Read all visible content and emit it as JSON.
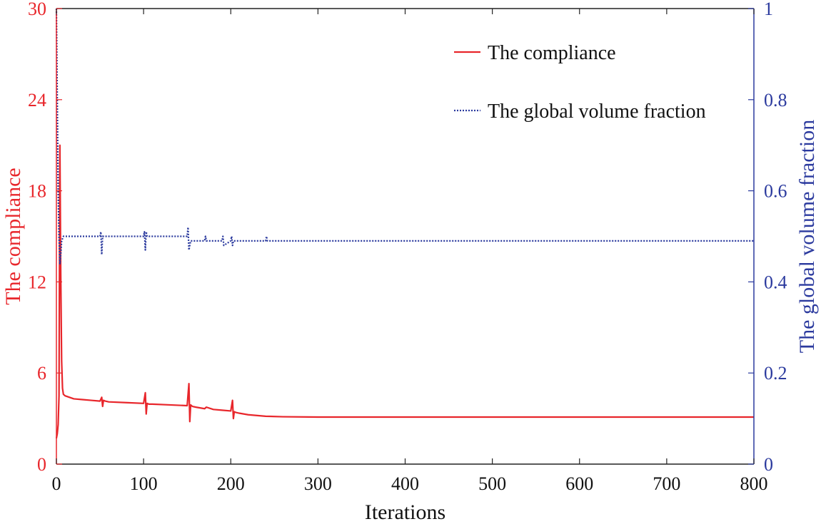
{
  "chart_data": {
    "type": "line",
    "xlabel": "Iterations",
    "ylabel_left": "The compliance",
    "ylabel_right": "The global volume fraction",
    "xlim": [
      0,
      800
    ],
    "ylim_left": [
      0,
      30
    ],
    "ylim_right": [
      0,
      1
    ],
    "x_ticks": [
      0,
      100,
      200,
      300,
      400,
      500,
      600,
      700,
      800
    ],
    "y_ticks_left": [
      0,
      6,
      12,
      18,
      24,
      30
    ],
    "y_ticks_right": [
      "0",
      "0.2",
      "0.4",
      "0.6",
      "0.8",
      "1"
    ],
    "legend_position": "top-right",
    "colors": {
      "left_axis": "#e8262b",
      "right_axis": "#2b3a9e",
      "frame": "#222222"
    },
    "series": [
      {
        "name": "The compliance",
        "axis": "left",
        "style": "solid",
        "color": "#e8262b",
        "x": [
          0,
          1,
          2,
          3,
          4,
          5,
          6,
          7,
          8,
          10,
          15,
          20,
          30,
          40,
          50,
          52,
          53,
          54,
          56,
          60,
          80,
          100,
          102,
          103,
          104,
          106,
          110,
          130,
          150,
          152,
          153,
          154,
          156,
          160,
          170,
          172,
          180,
          190,
          200,
          202,
          203,
          204,
          206,
          210,
          220,
          240,
          260,
          300,
          400,
          500,
          600,
          700,
          800
        ],
        "y": [
          1.7,
          2.0,
          2.6,
          4.5,
          21.0,
          12.5,
          6.8,
          5.0,
          4.6,
          4.5,
          4.4,
          4.3,
          4.25,
          4.2,
          4.15,
          4.4,
          3.8,
          4.2,
          4.15,
          4.1,
          4.05,
          4.0,
          4.7,
          3.3,
          4.0,
          3.95,
          3.95,
          3.9,
          3.85,
          5.3,
          2.8,
          3.9,
          3.8,
          3.75,
          3.65,
          3.75,
          3.6,
          3.55,
          3.5,
          4.2,
          3.0,
          3.45,
          3.4,
          3.35,
          3.25,
          3.15,
          3.12,
          3.1,
          3.1,
          3.1,
          3.1,
          3.1,
          3.1
        ]
      },
      {
        "name": "The global volume fraction",
        "axis": "right",
        "style": "dotted",
        "color": "#2b3a9e",
        "x": [
          0,
          1,
          2,
          3,
          4,
          5,
          6,
          8,
          10,
          20,
          50,
          51,
          52,
          53,
          54,
          56,
          100,
          101,
          102,
          103,
          104,
          106,
          150,
          151,
          152,
          153,
          154,
          155,
          158,
          170,
          171,
          172,
          190,
          191,
          192,
          200,
          201,
          202,
          203,
          204,
          210,
          240,
          241,
          242,
          300,
          400,
          500,
          600,
          700,
          800
        ],
        "y": [
          1.0,
          0.8,
          0.6,
          0.5,
          0.44,
          0.46,
          0.49,
          0.5,
          0.5,
          0.5,
          0.5,
          0.51,
          0.46,
          0.5,
          0.5,
          0.5,
          0.5,
          0.51,
          0.47,
          0.51,
          0.5,
          0.5,
          0.5,
          0.52,
          0.47,
          0.48,
          0.49,
          0.49,
          0.49,
          0.49,
          0.5,
          0.49,
          0.49,
          0.5,
          0.48,
          0.49,
          0.5,
          0.48,
          0.49,
          0.49,
          0.49,
          0.49,
          0.5,
          0.49,
          0.49,
          0.49,
          0.49,
          0.49,
          0.49,
          0.49
        ]
      }
    ]
  }
}
